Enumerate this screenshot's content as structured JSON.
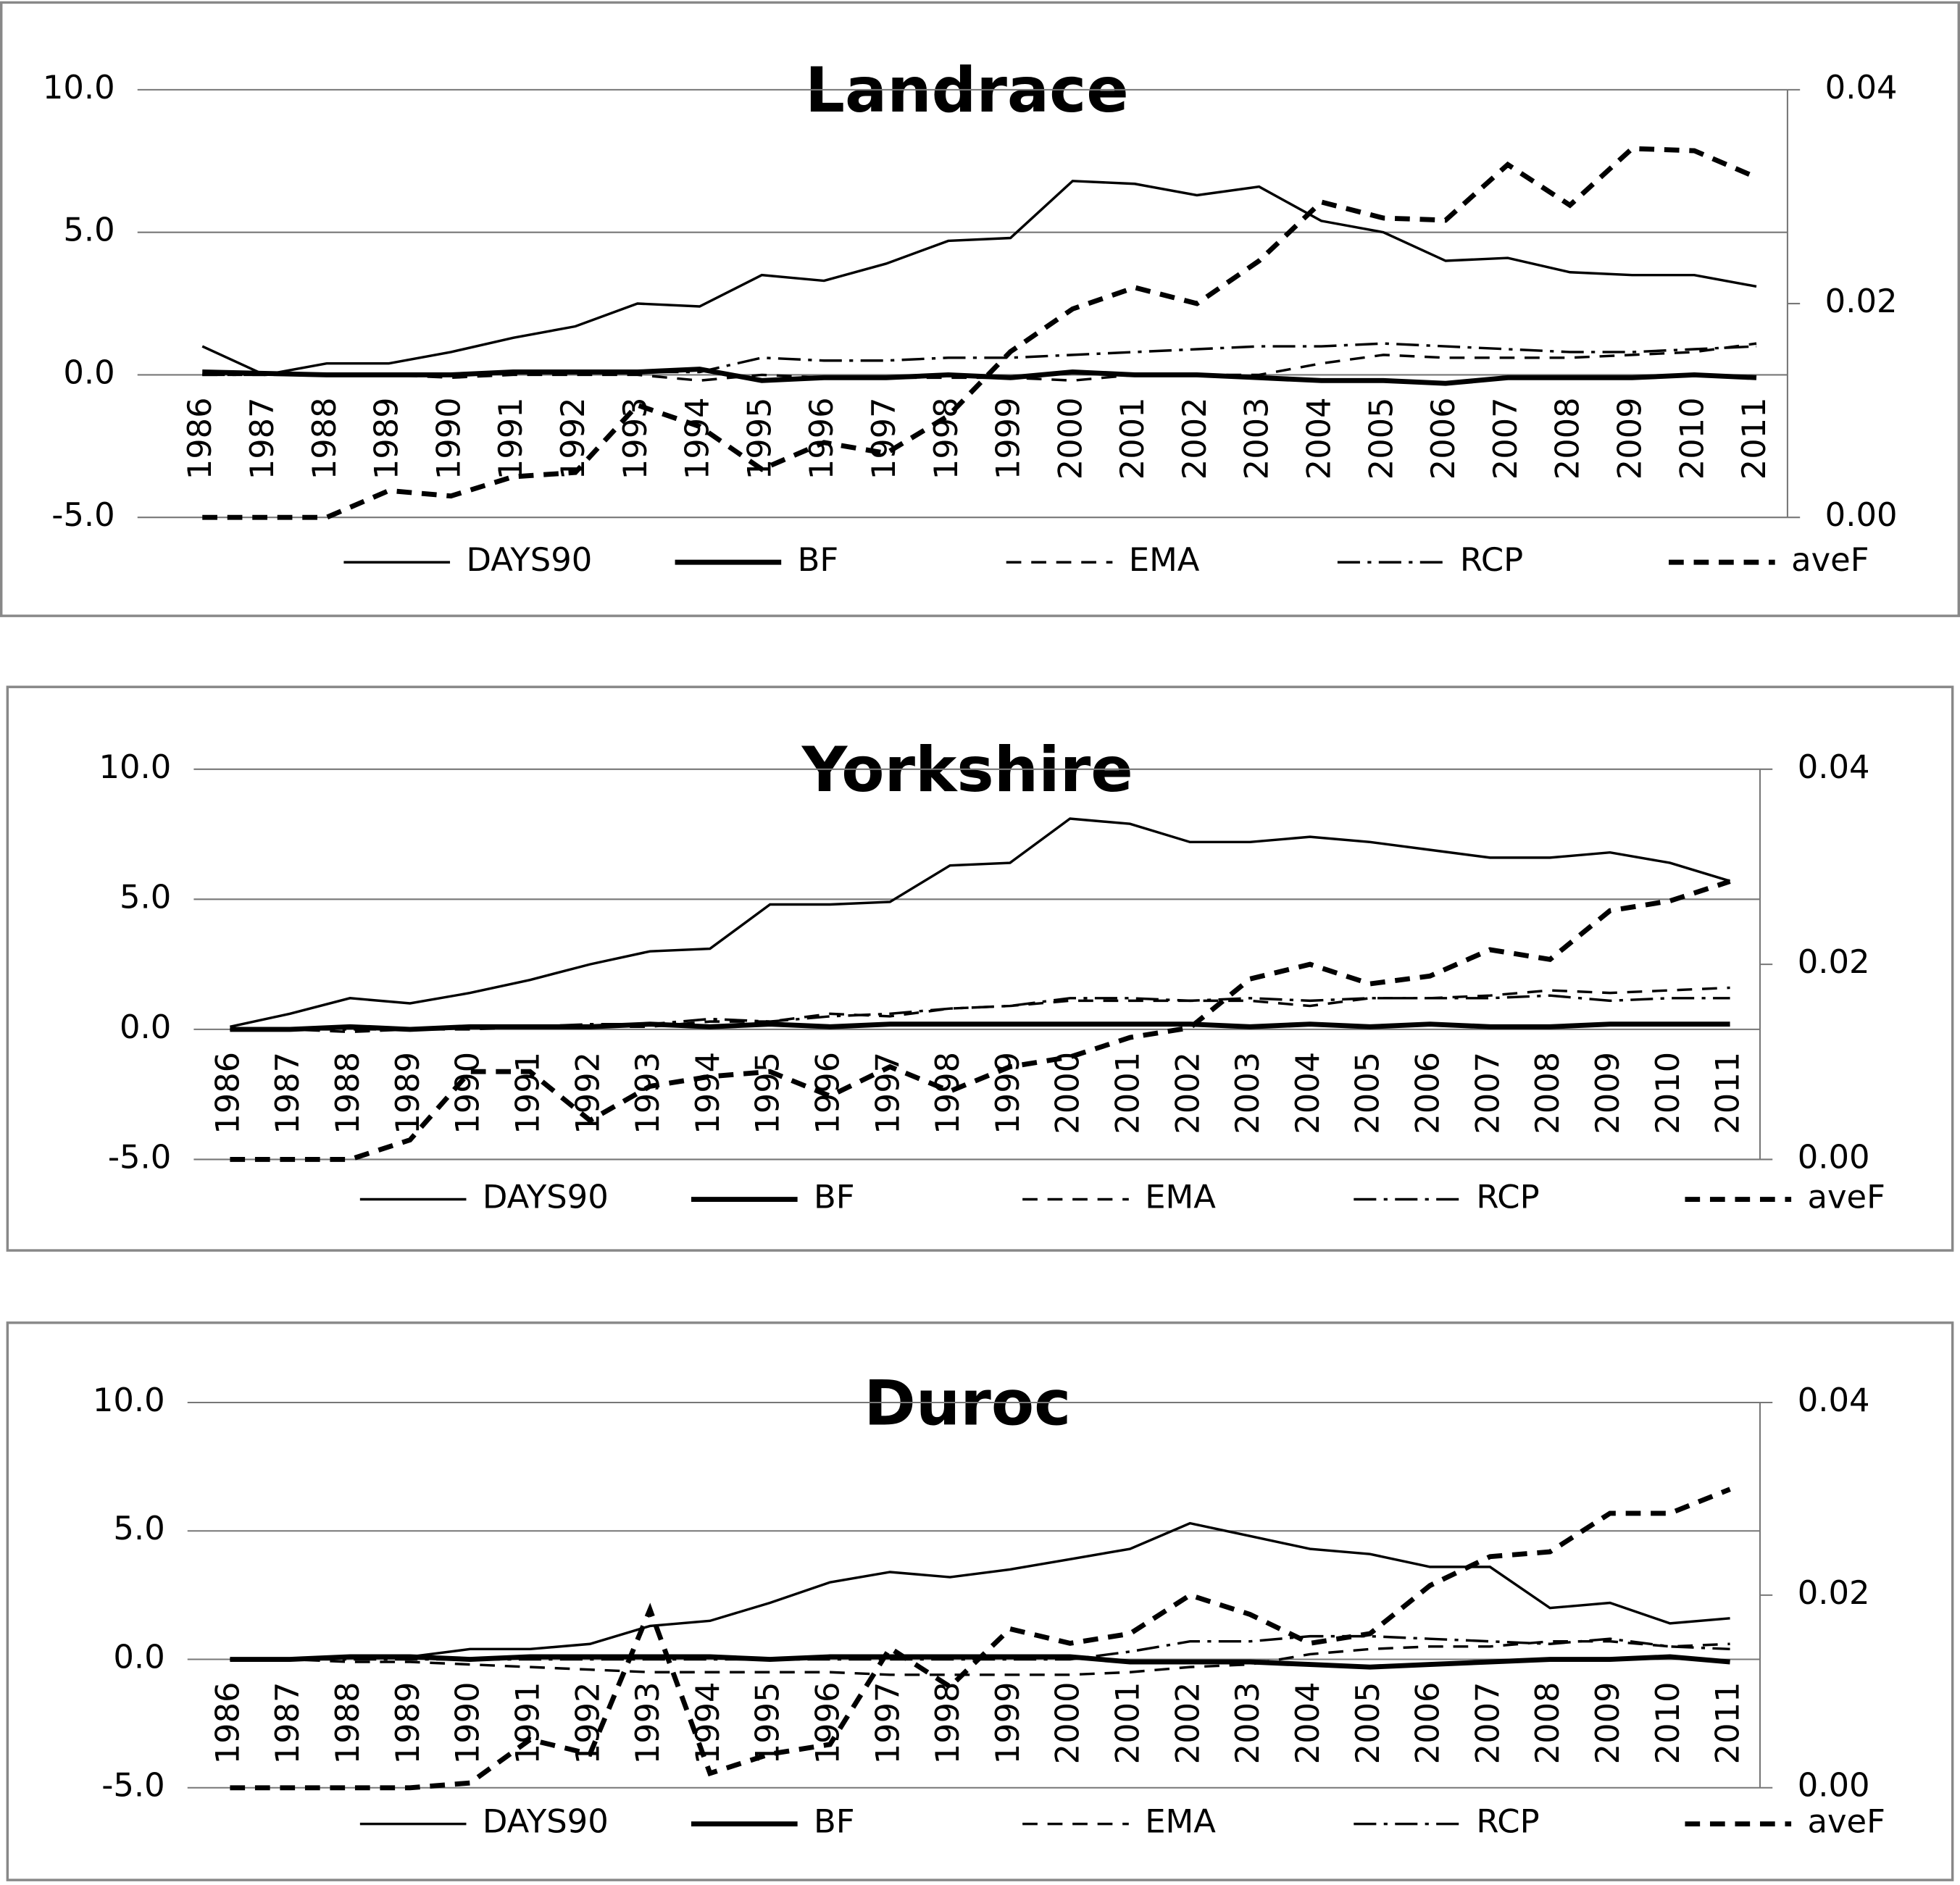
{
  "chart_data": [
    {
      "type": "line",
      "title": "Landrace",
      "categories": [
        "1986",
        "1987",
        "1988",
        "1989",
        "1990",
        "1991",
        "1992",
        "1993",
        "1994",
        "1995",
        "1996",
        "1997",
        "1998",
        "1999",
        "2000",
        "2001",
        "2002",
        "2003",
        "2004",
        "2005",
        "2006",
        "2007",
        "2008",
        "2009",
        "2010",
        "2011"
      ],
      "ylim": [
        -5,
        10
      ],
      "yticks": [
        {
          "value": -5,
          "label": "-5.0"
        },
        {
          "value": 0,
          "label": "0.0"
        },
        {
          "value": 5,
          "label": "5.0"
        },
        {
          "value": 10,
          "label": "10.0"
        }
      ],
      "y2lim": [
        0,
        0.04
      ],
      "y2ticks": [
        {
          "value": 0,
          "label": "0.00"
        },
        0.02,
        0.04
      ],
      "grid": true,
      "legend": "bottom",
      "series": [
        {
          "name": "DAYS90",
          "color": "#000000",
          "line_style": "solid",
          "line_width": 2,
          "values": [
            1.0,
            0.0,
            0.4,
            0.4,
            0.8,
            1.3,
            1.7,
            2.5,
            2.4,
            3.5,
            3.3,
            3.9,
            4.7,
            4.8,
            6.8,
            6.7,
            6.3,
            6.6,
            5.4,
            5.0,
            4.0,
            4.1,
            3.6,
            3.5,
            3.5,
            3.1
          ]
        },
        {
          "name": "BF",
          "color": "#000000",
          "line_style": "solid",
          "line_width": 4,
          "values": [
            0.1,
            0.05,
            0,
            0,
            0,
            0.1,
            0.1,
            0.1,
            0.2,
            -0.2,
            -0.1,
            -0.1,
            0,
            -0.1,
            0.1,
            0,
            0,
            -0.1,
            -0.2,
            -0.2,
            -0.3,
            -0.1,
            -0.1,
            -0.1,
            0,
            -0.1
          ]
        },
        {
          "name": "EMA",
          "color": "#000000",
          "line_style": "dashed",
          "line_width": 2,
          "values": [
            0,
            0,
            0,
            0,
            -0.1,
            0,
            0,
            0,
            -0.2,
            0,
            -0.1,
            -0.1,
            -0.1,
            -0.1,
            -0.2,
            0,
            0,
            0,
            0.4,
            0.7,
            0.6,
            0.6,
            0.6,
            0.7,
            0.8,
            1.1
          ]
        },
        {
          "name": "RCP",
          "color": "#000000",
          "line_style": "dashdot",
          "line_width": 2,
          "values": [
            0,
            0,
            0,
            0,
            0,
            0.1,
            0.1,
            0.1,
            0.1,
            0.6,
            0.5,
            0.5,
            0.6,
            0.6,
            0.7,
            0.8,
            0.9,
            1.0,
            1.0,
            1.1,
            1.0,
            0.9,
            0.8,
            0.8,
            0.9,
            1.0
          ]
        },
        {
          "name": "aveF",
          "color": "#000000",
          "line_style": "dashed",
          "line_width": 4,
          "axis": "y2",
          "values": [
            0,
            0,
            0,
            0.0025,
            0.002,
            0.0038,
            0.0042,
            0.0105,
            0.0085,
            0.0045,
            0.007,
            0.006,
            0.0095,
            0.0155,
            0.0195,
            0.0215,
            0.02,
            0.024,
            0.0295,
            0.028,
            0.0278,
            0.033,
            0.0292,
            0.0345,
            0.0343,
            0.0318
          ]
        }
      ]
    },
    {
      "type": "line",
      "title": "Yorkshire",
      "categories": [
        "1986",
        "1987",
        "1988",
        "1989",
        "1990",
        "1991",
        "1992",
        "1993",
        "1994",
        "1995",
        "1996",
        "1997",
        "1998",
        "1999",
        "2000",
        "2001",
        "2002",
        "2003",
        "2004",
        "2005",
        "2006",
        "2007",
        "2008",
        "2009",
        "2010",
        "2011"
      ],
      "ylim": [
        -5,
        10
      ],
      "yticks": [
        {
          "value": -5,
          "label": "-5.0"
        },
        {
          "value": 0,
          "label": "0.0"
        },
        {
          "value": 5,
          "label": "5.0"
        },
        {
          "value": 10,
          "label": "10.0"
        }
      ],
      "y2lim": [
        0,
        0.04
      ],
      "y2ticks": [
        {
          "value": 0,
          "label": "0.00"
        },
        0.02,
        0.04
      ],
      "grid": true,
      "legend": "bottom",
      "series": [
        {
          "name": "DAYS90",
          "color": "#000000",
          "line_style": "solid",
          "line_width": 2,
          "values": [
            0.1,
            0.6,
            1.2,
            1.0,
            1.4,
            1.9,
            2.5,
            3.0,
            3.1,
            4.8,
            4.8,
            4.9,
            6.3,
            6.4,
            8.1,
            7.9,
            7.2,
            7.2,
            7.4,
            7.2,
            6.9,
            6.6,
            6.6,
            6.8,
            6.4,
            5.7
          ]
        },
        {
          "name": "BF",
          "color": "#000000",
          "line_style": "solid",
          "line_width": 4,
          "values": [
            0,
            0,
            0.1,
            0,
            0.1,
            0.1,
            0.1,
            0.2,
            0.1,
            0.2,
            0.1,
            0.2,
            0.2,
            0.2,
            0.2,
            0.2,
            0.2,
            0.1,
            0.2,
            0.1,
            0.2,
            0.1,
            0.1,
            0.2,
            0.2,
            0.2
          ]
        },
        {
          "name": "EMA",
          "color": "#000000",
          "line_style": "dashed",
          "line_width": 2,
          "values": [
            0,
            0,
            -0.1,
            0,
            0,
            0.1,
            0.1,
            0.1,
            0.3,
            0.3,
            0.6,
            0.5,
            0.8,
            0.9,
            1.1,
            1.1,
            1.1,
            1.1,
            0.9,
            1.2,
            1.2,
            1.3,
            1.5,
            1.4,
            1.5,
            1.6
          ]
        },
        {
          "name": "RCP",
          "color": "#000000",
          "line_style": "dashdot",
          "line_width": 2,
          "values": [
            0,
            0,
            0,
            0,
            0.1,
            0.1,
            0.2,
            0.2,
            0.4,
            0.3,
            0.5,
            0.6,
            0.8,
            0.9,
            1.2,
            1.2,
            1.1,
            1.2,
            1.1,
            1.2,
            1.2,
            1.2,
            1.3,
            1.1,
            1.2,
            1.2
          ]
        },
        {
          "name": "aveF",
          "color": "#000000",
          "line_style": "dashed",
          "line_width": 4,
          "axis": "y2",
          "values": [
            0,
            0,
            0,
            0.002,
            0.009,
            0.009,
            0.004,
            0.0075,
            0.0085,
            0.009,
            0.0065,
            0.0095,
            0.007,
            0.0095,
            0.0105,
            0.0125,
            0.0135,
            0.0185,
            0.02,
            0.018,
            0.0188,
            0.0215,
            0.0205,
            0.0255,
            0.0265,
            0.0285
          ]
        }
      ]
    },
    {
      "type": "line",
      "title": "Duroc",
      "categories": [
        "1986",
        "1987",
        "1988",
        "1989",
        "1990",
        "1991",
        "1992",
        "1993",
        "1994",
        "1995",
        "1996",
        "1997",
        "1998",
        "1999",
        "2000",
        "2001",
        "2002",
        "2003",
        "2004",
        "2005",
        "2006",
        "2007",
        "2008",
        "2009",
        "2010",
        "2011"
      ],
      "ylim": [
        -5,
        10
      ],
      "yticks": [
        {
          "value": -5,
          "label": "-5.0"
        },
        {
          "value": 0,
          "label": "0.0"
        },
        {
          "value": 5,
          "label": "5.0"
        },
        {
          "value": 10,
          "label": "10.0"
        }
      ],
      "y2lim": [
        0,
        0.04
      ],
      "y2ticks": [
        {
          "value": 0,
          "label": "0.00"
        },
        0.02,
        0.04
      ],
      "grid": true,
      "legend": "bottom",
      "series": [
        {
          "name": "DAYS90",
          "color": "#000000",
          "line_style": "solid",
          "line_width": 2,
          "values": [
            0,
            0,
            0.1,
            0.1,
            0.4,
            0.4,
            0.6,
            1.3,
            1.5,
            2.2,
            3.0,
            3.4,
            3.2,
            3.5,
            3.9,
            4.3,
            5.3,
            4.8,
            4.3,
            4.1,
            3.6,
            3.6,
            2.0,
            2.2,
            1.4,
            1.6
          ]
        },
        {
          "name": "BF",
          "color": "#000000",
          "line_style": "solid",
          "line_width": 4,
          "values": [
            0,
            0,
            0.1,
            0.1,
            0,
            0.1,
            0.1,
            0.1,
            0.1,
            0,
            0.1,
            0.1,
            0.1,
            0.1,
            0.1,
            -0.1,
            -0.1,
            -0.1,
            -0.2,
            -0.3,
            -0.2,
            -0.1,
            0,
            0,
            0.1,
            -0.1
          ]
        },
        {
          "name": "EMA",
          "color": "#000000",
          "line_style": "dashed",
          "line_width": 2,
          "values": [
            0,
            0,
            -0.1,
            -0.1,
            -0.2,
            -0.3,
            -0.4,
            -0.5,
            -0.5,
            -0.5,
            -0.5,
            -0.6,
            -0.6,
            -0.6,
            -0.6,
            -0.5,
            -0.3,
            -0.2,
            0.2,
            0.4,
            0.5,
            0.5,
            0.7,
            0.7,
            0.5,
            0.6
          ]
        },
        {
          "name": "RCP",
          "color": "#000000",
          "line_style": "dashdot",
          "line_width": 2,
          "values": [
            0,
            0,
            0,
            0,
            0,
            0,
            0,
            0,
            0,
            0,
            0,
            0,
            0,
            0,
            0,
            0.3,
            0.7,
            0.7,
            0.9,
            0.9,
            0.8,
            0.7,
            0.6,
            0.8,
            0.5,
            0.4
          ]
        },
        {
          "name": "aveF",
          "color": "#000000",
          "line_style": "dashed",
          "line_width": 4,
          "axis": "y2",
          "values": [
            0,
            0,
            0,
            0,
            0.0005,
            0.005,
            0.0035,
            0.0185,
            0.0015,
            0.0035,
            0.0045,
            0.0145,
            0.0105,
            0.0165,
            0.015,
            0.016,
            0.02,
            0.018,
            0.015,
            0.016,
            0.021,
            0.024,
            0.0245,
            0.0285,
            0.0285,
            0.031
          ]
        }
      ]
    }
  ]
}
